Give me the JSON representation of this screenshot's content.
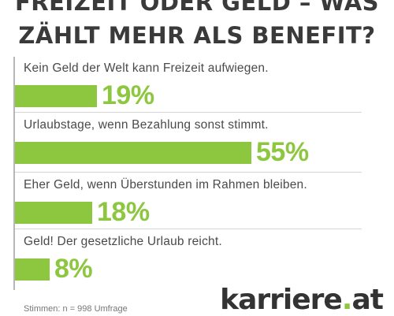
{
  "chart_data": {
    "type": "bar",
    "orientation": "horizontal",
    "title_line1": "FREIZEIT ODER GELD – WAS",
    "title_line2": "ZÄHLT MEHR ALS BENEFIT?",
    "categories": [
      "Kein Geld der Welt kann Freizeit aufwiegen.",
      "Urlaubstage, wenn Bezahlung sonst stimmt.",
      "Eher Geld, wenn Überstunden im Rahmen bleiben.",
      "Geld! Der gesetzliche Urlaub reicht."
    ],
    "values": [
      19,
      55,
      18,
      8
    ],
    "value_labels": [
      "19%",
      "55%",
      "18%",
      "8%"
    ],
    "unit": "%",
    "bar_color": "#8dc63f",
    "grid": false
  },
  "source_text": "Stimmen: n = 998 Umfrage",
  "logo": {
    "text": "karriere",
    "dot": ".",
    "suffix": "at"
  }
}
